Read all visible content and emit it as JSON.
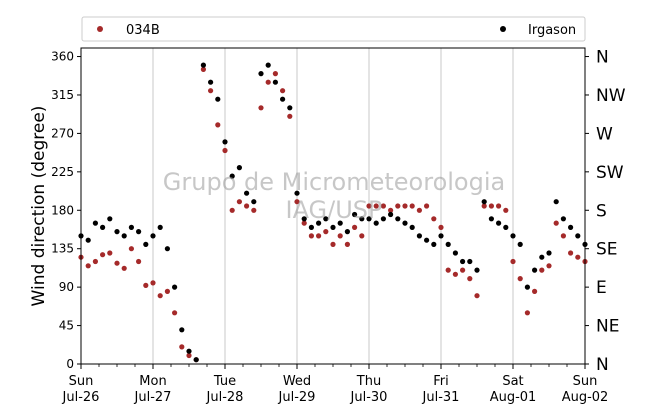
{
  "chart_data": {
    "type": "scatter",
    "title": "",
    "xlabel": "",
    "ylabel": "Wind direction (degree)",
    "ylim": [
      0,
      370
    ],
    "yticks": [
      0,
      45,
      90,
      135,
      180,
      225,
      270,
      315,
      360
    ],
    "compass_labels": [
      "N",
      "NE",
      "E",
      "SE",
      "S",
      "SW",
      "W",
      "NW",
      "N"
    ],
    "x_ticks": [
      {
        "day": "Sun",
        "date": "Jul-26"
      },
      {
        "day": "Mon",
        "date": "Jul-27"
      },
      {
        "day": "Tue",
        "date": "Jul-28"
      },
      {
        "day": "Wed",
        "date": "Jul-29"
      },
      {
        "day": "Thu",
        "date": "Jul-30"
      },
      {
        "day": "Fri",
        "date": "Jul-31"
      },
      {
        "day": "Sat",
        "date": "Aug-01"
      },
      {
        "day": "Sun",
        "date": "Aug-02"
      }
    ],
    "grid": "vertical-at-days",
    "legend_placement": "top",
    "watermark": [
      "Grupo de Micrometeorologia",
      "IAG/USP"
    ],
    "series": [
      {
        "name": "034B",
        "color": "#a52a2a",
        "x": [
          0.0,
          0.1,
          0.2,
          0.3,
          0.4,
          0.5,
          0.6,
          0.7,
          0.8,
          0.9,
          1.0,
          1.1,
          1.2,
          1.3,
          1.4,
          1.5,
          1.6,
          1.7,
          1.8,
          1.9,
          2.0,
          2.1,
          2.2,
          2.3,
          2.4,
          2.5,
          2.6,
          2.7,
          2.8,
          2.9,
          3.0,
          3.1,
          3.2,
          3.3,
          3.4,
          3.5,
          3.6,
          3.7,
          3.8,
          3.9,
          4.0,
          4.1,
          4.2,
          4.3,
          4.4,
          4.5,
          4.6,
          4.7,
          4.8,
          4.9,
          5.0,
          5.1,
          5.2,
          5.3,
          5.4,
          5.5,
          5.6,
          5.7,
          5.8,
          5.9,
          6.0,
          6.1,
          6.2,
          6.3,
          6.4,
          6.5,
          6.6,
          6.7,
          6.8,
          6.9,
          7.0
        ],
        "y": [
          125,
          115,
          120,
          128,
          130,
          118,
          112,
          135,
          120,
          92,
          95,
          80,
          85,
          60,
          20,
          10,
          5,
          345,
          320,
          280,
          250,
          180,
          190,
          185,
          180,
          300,
          330,
          340,
          320,
          290,
          190,
          165,
          150,
          150,
          155,
          140,
          150,
          140,
          160,
          150,
          185,
          185,
          185,
          180,
          185,
          185,
          185,
          180,
          185,
          170,
          160,
          110,
          105,
          110,
          100,
          80,
          185,
          185,
          185,
          180,
          120,
          100,
          60,
          85,
          110,
          115,
          165,
          150,
          130,
          125,
          120
        ]
      },
      {
        "name": "Irgason",
        "color": "#000000",
        "x": [
          0.0,
          0.1,
          0.2,
          0.3,
          0.4,
          0.5,
          0.6,
          0.7,
          0.8,
          0.9,
          1.0,
          1.1,
          1.2,
          1.3,
          1.4,
          1.5,
          1.6,
          1.7,
          1.8,
          1.9,
          2.0,
          2.1,
          2.2,
          2.3,
          2.4,
          2.5,
          2.6,
          2.7,
          2.8,
          2.9,
          3.0,
          3.1,
          3.2,
          3.3,
          3.4,
          3.5,
          3.6,
          3.7,
          3.8,
          3.9,
          4.0,
          4.1,
          4.2,
          4.3,
          4.4,
          4.5,
          4.6,
          4.7,
          4.8,
          4.9,
          5.0,
          5.1,
          5.2,
          5.3,
          5.4,
          5.5,
          5.6,
          5.7,
          5.8,
          5.9,
          6.0,
          6.1,
          6.2,
          6.3,
          6.4,
          6.5,
          6.6,
          6.7,
          6.8,
          6.9,
          7.0
        ],
        "y": [
          150,
          145,
          165,
          160,
          170,
          155,
          150,
          160,
          155,
          140,
          150,
          160,
          135,
          90,
          40,
          15,
          5,
          350,
          330,
          310,
          260,
          220,
          230,
          200,
          190,
          340,
          350,
          330,
          310,
          300,
          200,
          170,
          160,
          165,
          170,
          160,
          165,
          155,
          175,
          170,
          170,
          165,
          170,
          175,
          170,
          165,
          160,
          150,
          145,
          140,
          150,
          140,
          130,
          120,
          120,
          110,
          190,
          170,
          165,
          160,
          150,
          140,
          90,
          110,
          125,
          130,
          190,
          170,
          160,
          150,
          140
        ]
      }
    ]
  }
}
